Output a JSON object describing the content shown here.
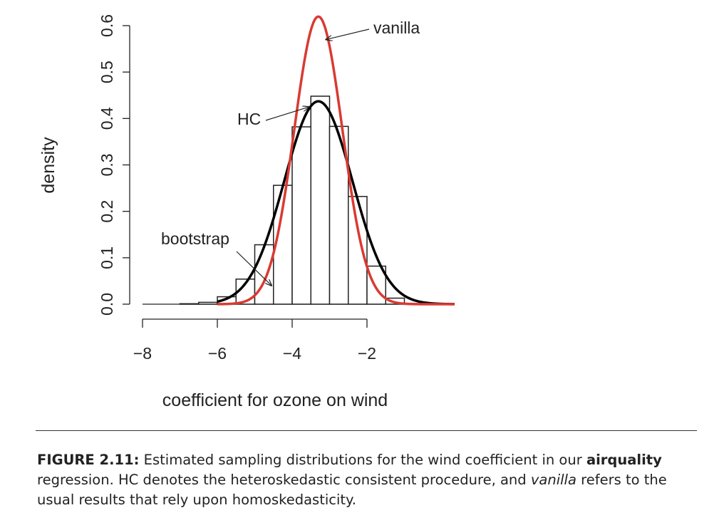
{
  "chart_data": {
    "type": "histogram",
    "xlabel": "coefficient for ozone on wind",
    "ylabel": "density",
    "xlim": [
      -8,
      0.35
    ],
    "ylim": [
      0,
      0.6
    ],
    "x_ticks": [
      -8,
      -6,
      -4,
      -2
    ],
    "x_tick_labels": [
      "−8",
      "−6",
      "−4",
      "−2"
    ],
    "y_ticks": [
      0,
      0.1,
      0.2,
      0.3,
      0.4,
      0.5,
      0.6
    ],
    "y_tick_labels": [
      "0.0",
      "0.1",
      "0.2",
      "0.3",
      "0.4",
      "0.5",
      "0.6"
    ],
    "grid": false,
    "histogram": {
      "name": "bootstrap",
      "bin_edges": [
        -8.0,
        -7.5,
        -7.0,
        -6.5,
        -6.0,
        -5.5,
        -5.0,
        -4.5,
        -4.0,
        -3.5,
        -3.0,
        -2.5,
        -2.0,
        -1.5,
        -1.0
      ],
      "densities": [
        0.0,
        0.0,
        0.001,
        0.004,
        0.016,
        0.054,
        0.128,
        0.256,
        0.382,
        0.448,
        0.383,
        0.232,
        0.082,
        0.013
      ]
    },
    "curves": [
      {
        "label": "HC",
        "color": "#000000",
        "mean": -3.3,
        "sd": 0.913
      },
      {
        "label": "vanilla",
        "color": "#d93a32",
        "mean": -3.3,
        "sd": 0.644
      }
    ],
    "annotations": [
      {
        "text": "vanilla",
        "points_to": [
          -3.1,
          0.57
        ]
      },
      {
        "text": "HC",
        "points_to": [
          -3.55,
          0.425
        ]
      },
      {
        "text": "bootstrap",
        "points_to": [
          -4.55,
          0.04
        ]
      }
    ]
  },
  "caption": {
    "label": "FIGURE 2.11:",
    "text1": " Estimated sampling distributions for the wind coefficient in our ",
    "bold": "airquality",
    "text2": " regression. HC denotes the heteroskedastic consistent procedure, and ",
    "italic": "vanilla",
    "text3": " refers to the usual results that rely upon homoskedasticity."
  }
}
